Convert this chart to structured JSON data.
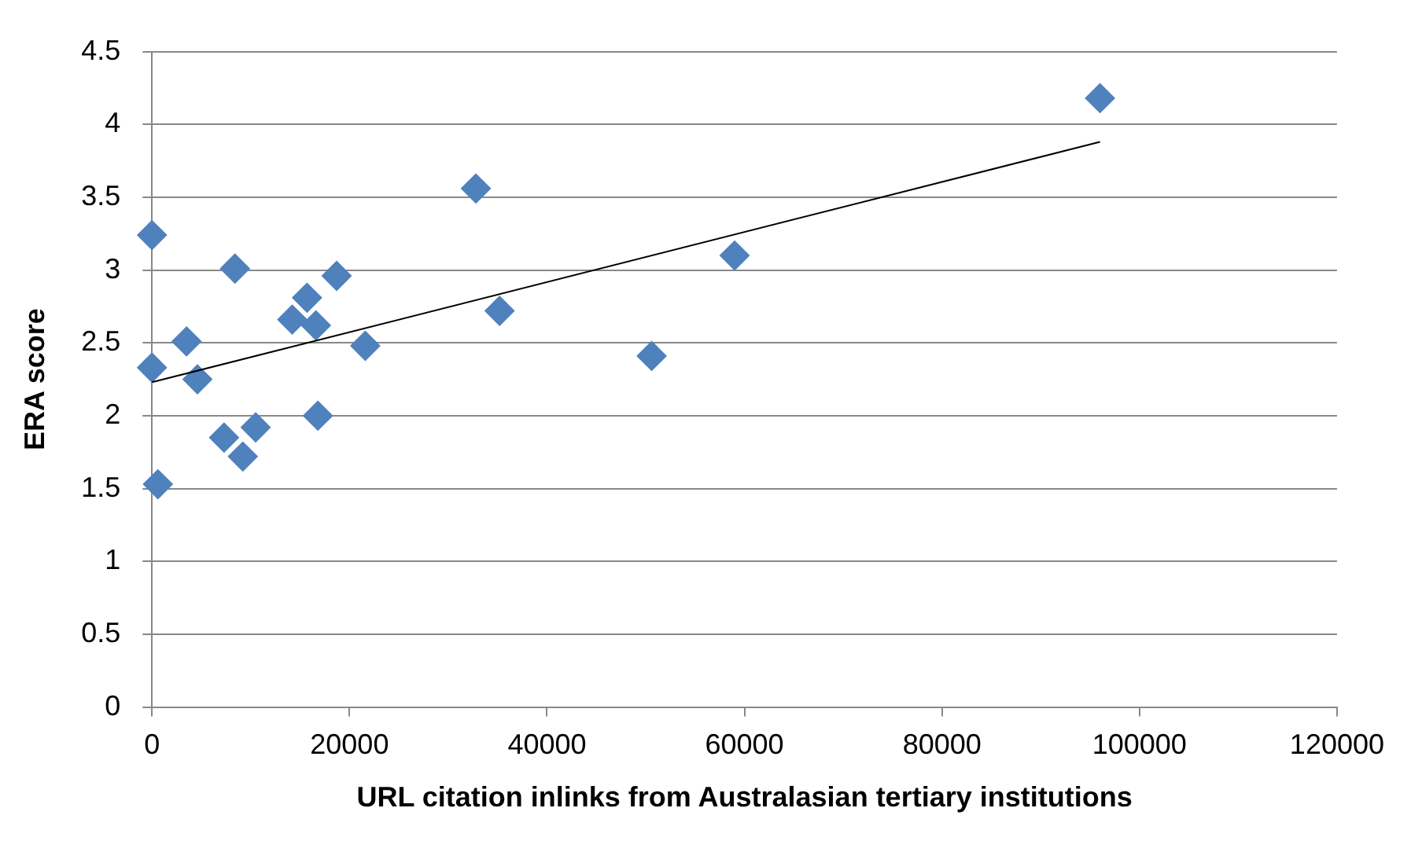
{
  "chart_data": {
    "type": "scatter",
    "xlabel": "URL citation inlinks from Australasian tertiary institutions",
    "ylabel": "ERA score",
    "xlim": [
      0,
      120000
    ],
    "xticks": [
      0,
      20000,
      40000,
      60000,
      80000,
      100000,
      120000
    ],
    "ylim": [
      0,
      4.5
    ],
    "yticks": [
      0,
      0.5,
      1,
      1.5,
      2,
      2.5,
      3,
      3.5,
      4,
      4.5
    ],
    "grid": "y",
    "legend": false,
    "marker": "diamond",
    "series": [
      {
        "color": "#4f81bd",
        "x": [
          0,
          0,
          600,
          3500,
          4600,
          7300,
          8400,
          9200,
          10500,
          14200,
          15700,
          16600,
          16800,
          18700,
          21600,
          32800,
          35200,
          50600,
          59000,
          96000
        ],
        "values": [
          3.24,
          2.33,
          1.53,
          2.51,
          2.25,
          1.85,
          3.01,
          1.72,
          1.92,
          2.66,
          2.81,
          2.62,
          2.0,
          2.96,
          2.48,
          3.56,
          2.72,
          2.41,
          3.1,
          4.18
        ]
      },
      {
        "type": "line",
        "color": "#000000",
        "marker": "none",
        "x": [
          0,
          96000
        ],
        "values": [
          2.23,
          3.88
        ]
      }
    ]
  }
}
